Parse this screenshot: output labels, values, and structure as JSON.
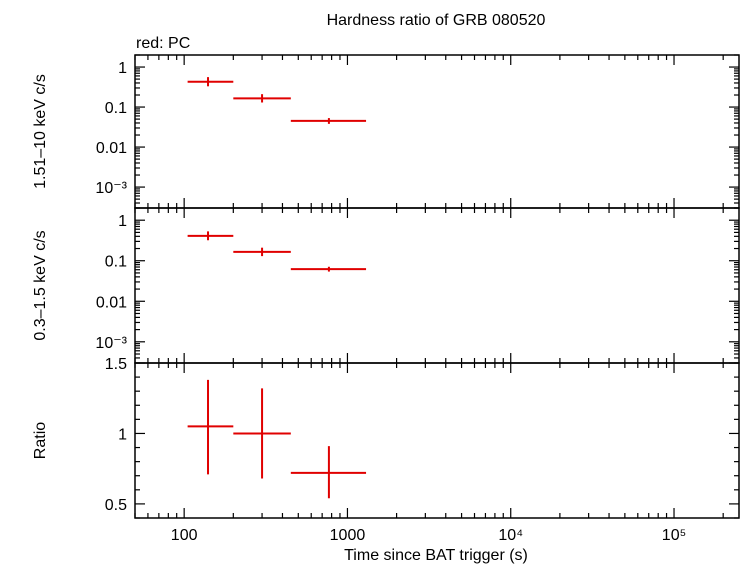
{
  "title": "Hardness ratio of GRB 080520",
  "legend_note": "red: PC",
  "colors": {
    "series": "#e00000",
    "axes": "#000000",
    "background": "#ffffff"
  },
  "chart_data": [
    {
      "type": "scatter",
      "panel": "hard",
      "ylabel": "1.51–10 keV c/s",
      "xscale": "log",
      "yscale": "log",
      "xlim": [
        50,
        250000
      ],
      "ylim": [
        0.0003,
        2.0
      ],
      "yticks": [
        {
          "value": 1,
          "label": "1"
        },
        {
          "value": 0.1,
          "label": "0.1"
        },
        {
          "value": 0.01,
          "label": "0.01"
        },
        {
          "value": 0.001,
          "label": "10⁻³"
        }
      ],
      "series": [
        {
          "name": "PC",
          "points": [
            {
              "x": 140,
              "xlo": 105,
              "xhi": 200,
              "y": 0.43,
              "ylo": 0.33,
              "yhi": 0.56
            },
            {
              "x": 300,
              "xlo": 200,
              "xhi": 450,
              "y": 0.165,
              "ylo": 0.13,
              "yhi": 0.21
            },
            {
              "x": 770,
              "xlo": 450,
              "xhi": 1300,
              "y": 0.045,
              "ylo": 0.038,
              "yhi": 0.053
            }
          ]
        }
      ]
    },
    {
      "type": "scatter",
      "panel": "soft",
      "ylabel": "0.3–1.5 keV c/s",
      "xscale": "log",
      "yscale": "log",
      "xlim": [
        50,
        250000
      ],
      "ylim": [
        0.0003,
        2.0
      ],
      "yticks": [
        {
          "value": 1,
          "label": "1"
        },
        {
          "value": 0.1,
          "label": "0.1"
        },
        {
          "value": 0.01,
          "label": "0.01"
        },
        {
          "value": 0.001,
          "label": "10⁻³"
        }
      ],
      "series": [
        {
          "name": "PC",
          "points": [
            {
              "x": 140,
              "xlo": 105,
              "xhi": 200,
              "y": 0.41,
              "ylo": 0.32,
              "yhi": 0.53
            },
            {
              "x": 300,
              "xlo": 200,
              "xhi": 450,
              "y": 0.165,
              "ylo": 0.13,
              "yhi": 0.21
            },
            {
              "x": 770,
              "xlo": 450,
              "xhi": 1300,
              "y": 0.062,
              "ylo": 0.054,
              "yhi": 0.071
            }
          ]
        }
      ]
    },
    {
      "type": "scatter",
      "panel": "ratio",
      "ylabel": "Ratio",
      "xlabel": "Time since BAT trigger (s)",
      "xscale": "log",
      "yscale": "linear",
      "xlim": [
        50,
        250000
      ],
      "ylim": [
        0.4,
        1.5
      ],
      "yticks": [
        {
          "value": 1.5,
          "label": "1.5"
        },
        {
          "value": 1,
          "label": "1"
        },
        {
          "value": 0.5,
          "label": "0.5"
        }
      ],
      "xticks": [
        {
          "value": 100,
          "label": "100"
        },
        {
          "value": 1000,
          "label": "1000"
        },
        {
          "value": 10000,
          "label": "10⁴"
        },
        {
          "value": 100000,
          "label": "10⁵"
        }
      ],
      "series": [
        {
          "name": "PC",
          "points": [
            {
              "x": 140,
              "xlo": 105,
              "xhi": 200,
              "y": 1.05,
              "ylo": 0.71,
              "yhi": 1.38
            },
            {
              "x": 300,
              "xlo": 200,
              "xhi": 450,
              "y": 1.0,
              "ylo": 0.68,
              "yhi": 1.32
            },
            {
              "x": 770,
              "xlo": 450,
              "xhi": 1300,
              "y": 0.72,
              "ylo": 0.54,
              "yhi": 0.91
            }
          ]
        }
      ]
    }
  ]
}
